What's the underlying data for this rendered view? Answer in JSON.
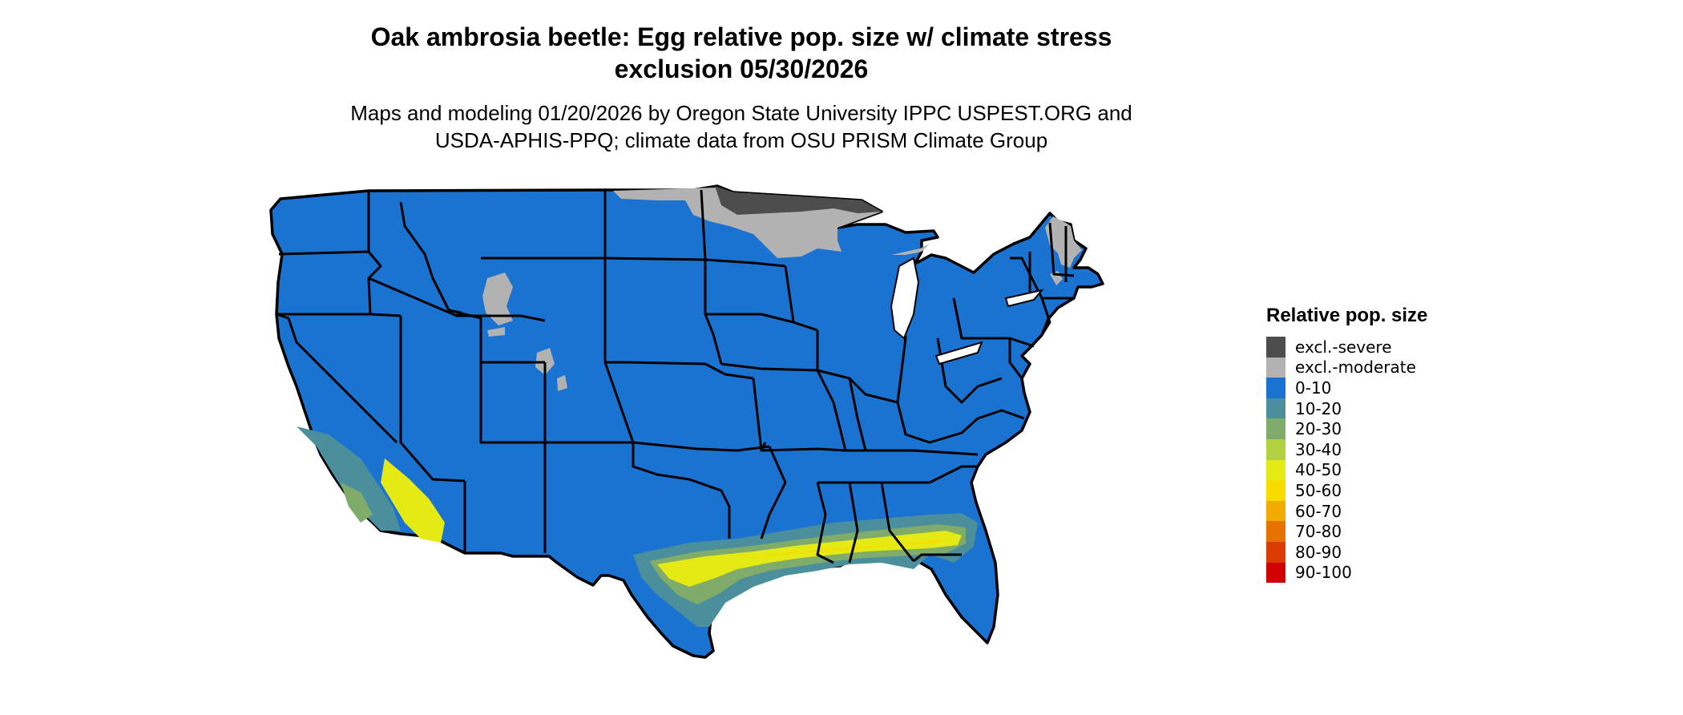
{
  "header": {
    "title_lines": [
      "Oak ambrosia beetle: Egg relative pop. size w/ climate stress",
      "exclusion 05/30/2026"
    ],
    "subtitle_lines": [
      "Maps and modeling 01/20/2026 by Oregon State University IPPC USPEST.ORG and",
      "USDA-APHIS-PPQ; climate data from OSU PRISM Climate Group"
    ]
  },
  "legend": {
    "title": "Relative pop. size",
    "items": [
      {
        "label": "excl.-severe",
        "color": "#4d4d4d"
      },
      {
        "label": "excl.-moderate",
        "color": "#b2b2b2"
      },
      {
        "label": "0-10",
        "color": "#1b73d1"
      },
      {
        "label": "10-20",
        "color": "#4a8f9b"
      },
      {
        "label": "20-30",
        "color": "#7fab6b"
      },
      {
        "label": "30-40",
        "color": "#b3d03f"
      },
      {
        "label": "40-50",
        "color": "#e5ea14"
      },
      {
        "label": "50-60",
        "color": "#f7dc00"
      },
      {
        "label": "60-70",
        "color": "#f2ab00"
      },
      {
        "label": "70-80",
        "color": "#e87200"
      },
      {
        "label": "80-90",
        "color": "#dc3b00"
      },
      {
        "label": "90-100",
        "color": "#d00000"
      }
    ]
  }
}
